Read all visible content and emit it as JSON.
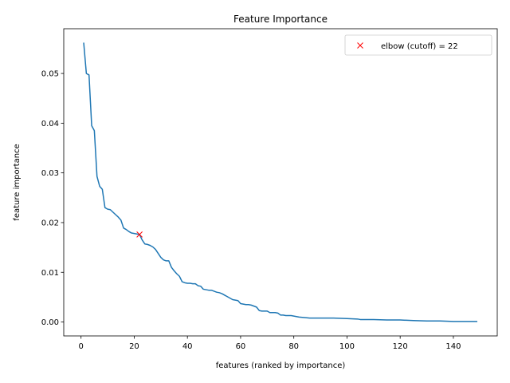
{
  "chart_data": {
    "type": "line",
    "title": "Feature Importance",
    "xlabel": "features (ranked by importance)",
    "ylabel": "feature importance",
    "xlim": [
      -6.5,
      156.5
    ],
    "ylim": [
      -0.0028,
      0.059
    ],
    "xticks": [
      0,
      20,
      40,
      60,
      80,
      100,
      120,
      140
    ],
    "yticks": [
      0.0,
      0.01,
      0.02,
      0.03,
      0.04,
      0.05
    ],
    "ytick_labels": [
      "0.00",
      "0.01",
      "0.02",
      "0.03",
      "0.04",
      "0.05"
    ],
    "grid": false,
    "legend_position": "upper right",
    "series": [
      {
        "color": "#1f77b4",
        "points": [
          [
            1,
            0.0562
          ],
          [
            2,
            0.05
          ],
          [
            3,
            0.0497
          ],
          [
            4,
            0.0395
          ],
          [
            5,
            0.0385
          ],
          [
            6,
            0.0293
          ],
          [
            7,
            0.0273
          ],
          [
            8,
            0.0267
          ],
          [
            9,
            0.023
          ],
          [
            10,
            0.0227
          ],
          [
            11,
            0.0226
          ],
          [
            12,
            0.0221
          ],
          [
            13,
            0.0216
          ],
          [
            14,
            0.0211
          ],
          [
            15,
            0.0205
          ],
          [
            16,
            0.0189
          ],
          [
            17,
            0.0186
          ],
          [
            18,
            0.0182
          ],
          [
            19,
            0.0179
          ],
          [
            20,
            0.0178
          ],
          [
            21,
            0.0177
          ],
          [
            22,
            0.0176
          ],
          [
            23,
            0.0165
          ],
          [
            24,
            0.0157
          ],
          [
            25,
            0.0156
          ],
          [
            26,
            0.0154
          ],
          [
            27,
            0.0151
          ],
          [
            28,
            0.0146
          ],
          [
            29,
            0.0138
          ],
          [
            30,
            0.013
          ],
          [
            31,
            0.0125
          ],
          [
            32,
            0.0123
          ],
          [
            33,
            0.0123
          ],
          [
            34,
            0.011
          ],
          [
            35,
            0.0103
          ],
          [
            36,
            0.0097
          ],
          [
            37,
            0.0092
          ],
          [
            38,
            0.0081
          ],
          [
            39,
            0.0079
          ],
          [
            40,
            0.0078
          ],
          [
            41,
            0.0078
          ],
          [
            42,
            0.0077
          ],
          [
            43,
            0.0077
          ],
          [
            44,
            0.0073
          ],
          [
            45,
            0.0072
          ],
          [
            46,
            0.0066
          ],
          [
            47,
            0.0065
          ],
          [
            48,
            0.0064
          ],
          [
            49,
            0.0064
          ],
          [
            50,
            0.0062
          ],
          [
            51,
            0.006
          ],
          [
            52,
            0.0059
          ],
          [
            53,
            0.0057
          ],
          [
            54,
            0.0054
          ],
          [
            55,
            0.0051
          ],
          [
            56,
            0.0048
          ],
          [
            57,
            0.0045
          ],
          [
            58,
            0.0044
          ],
          [
            59,
            0.0043
          ],
          [
            60,
            0.0037
          ],
          [
            61,
            0.0036
          ],
          [
            62,
            0.0035
          ],
          [
            63,
            0.0035
          ],
          [
            64,
            0.0034
          ],
          [
            65,
            0.0032
          ],
          [
            66,
            0.003
          ],
          [
            67,
            0.0023
          ],
          [
            68,
            0.0022
          ],
          [
            69,
            0.0022
          ],
          [
            70,
            0.0022
          ],
          [
            71,
            0.0019
          ],
          [
            72,
            0.0019
          ],
          [
            73,
            0.0019
          ],
          [
            74,
            0.0018
          ],
          [
            75,
            0.0014
          ],
          [
            76,
            0.0014
          ],
          [
            77,
            0.0013
          ],
          [
            78,
            0.0013
          ],
          [
            79,
            0.0013
          ],
          [
            80,
            0.0012
          ],
          [
            82,
            0.001
          ],
          [
            84,
            0.0009
          ],
          [
            86,
            0.0008
          ],
          [
            88,
            0.0008
          ],
          [
            90,
            0.0008
          ],
          [
            95,
            0.0008
          ],
          [
            100,
            0.0007
          ],
          [
            104,
            0.0006
          ],
          [
            105,
            0.0005
          ],
          [
            110,
            0.0005
          ],
          [
            115,
            0.0004
          ],
          [
            120,
            0.0004
          ],
          [
            125,
            0.0003
          ],
          [
            130,
            0.0002
          ],
          [
            135,
            0.0002
          ],
          [
            140,
            0.0001
          ],
          [
            145,
            0.0001
          ],
          [
            149,
            0.0001
          ]
        ]
      }
    ],
    "markers": [
      {
        "label": "elbow (cutoff) = 22",
        "x": 22,
        "y": 0.0176,
        "symbol": "x",
        "color": "#ff0000"
      }
    ]
  }
}
